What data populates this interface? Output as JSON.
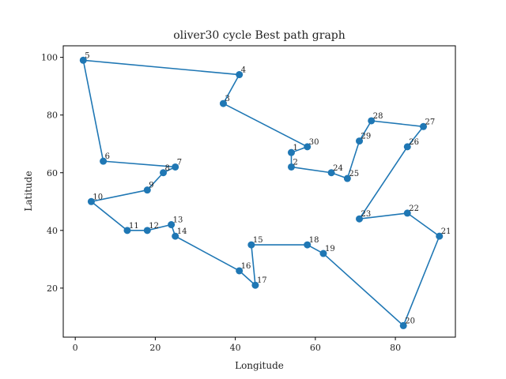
{
  "chart_data": {
    "type": "line",
    "title": "oliver30 cycle Best path graph",
    "xlabel": "Longitude",
    "ylabel": "Latitude",
    "xlim": [
      -3,
      95
    ],
    "ylim": [
      3,
      104
    ],
    "xticks": [
      0,
      20,
      40,
      60,
      80
    ],
    "yticks": [
      20,
      40,
      60,
      80,
      100
    ],
    "grid": false,
    "color": "#1f77b4",
    "points": [
      {
        "id": "1",
        "x": 54,
        "y": 67
      },
      {
        "id": "2",
        "x": 54,
        "y": 62
      },
      {
        "id": "3",
        "x": 37,
        "y": 84
      },
      {
        "id": "4",
        "x": 41,
        "y": 94
      },
      {
        "id": "5",
        "x": 2,
        "y": 99
      },
      {
        "id": "6",
        "x": 7,
        "y": 64
      },
      {
        "id": "7",
        "x": 25,
        "y": 62
      },
      {
        "id": "8",
        "x": 22,
        "y": 60
      },
      {
        "id": "9",
        "x": 18,
        "y": 54
      },
      {
        "id": "10",
        "x": 4,
        "y": 50
      },
      {
        "id": "11",
        "x": 13,
        "y": 40
      },
      {
        "id": "12",
        "x": 18,
        "y": 40
      },
      {
        "id": "13",
        "x": 24,
        "y": 42
      },
      {
        "id": "14",
        "x": 25,
        "y": 38
      },
      {
        "id": "15",
        "x": 44,
        "y": 35
      },
      {
        "id": "16",
        "x": 41,
        "y": 26
      },
      {
        "id": "17",
        "x": 45,
        "y": 21
      },
      {
        "id": "18",
        "x": 58,
        "y": 35
      },
      {
        "id": "19",
        "x": 62,
        "y": 32
      },
      {
        "id": "20",
        "x": 82,
        "y": 7
      },
      {
        "id": "21",
        "x": 91,
        "y": 38
      },
      {
        "id": "22",
        "x": 83,
        "y": 46
      },
      {
        "id": "23",
        "x": 71,
        "y": 44
      },
      {
        "id": "24",
        "x": 64,
        "y": 60
      },
      {
        "id": "25",
        "x": 68,
        "y": 58
      },
      {
        "id": "26",
        "x": 83,
        "y": 69
      },
      {
        "id": "27",
        "x": 87,
        "y": 76
      },
      {
        "id": "28",
        "x": 74,
        "y": 78
      },
      {
        "id": "29",
        "x": 71,
        "y": 71
      },
      {
        "id": "30",
        "x": 58,
        "y": 69
      }
    ],
    "path": [
      "1",
      "2",
      "24",
      "25",
      "29",
      "28",
      "27",
      "26",
      "23",
      "22",
      "21",
      "20",
      "19",
      "18",
      "15",
      "17",
      "16",
      "14",
      "13",
      "12",
      "11",
      "10",
      "9",
      "8",
      "7",
      "6",
      "5",
      "4",
      "3",
      "30",
      "1"
    ]
  }
}
